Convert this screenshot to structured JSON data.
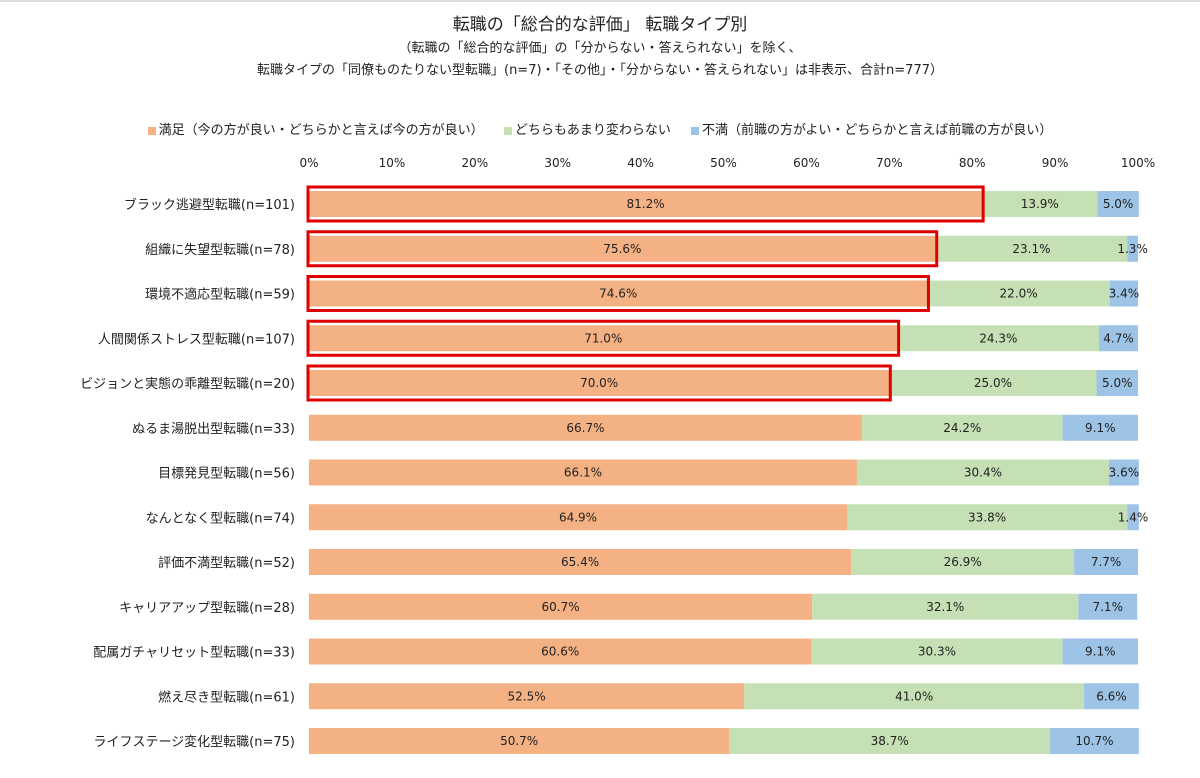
{
  "chart_data": {
    "type": "bar",
    "orientation": "horizontal",
    "stacked": true,
    "title": "転職の「総合的な評価」 転職タイプ別",
    "subtitle_lines": [
      "（転職の「総合的な評価」の「分からない・答えられない」を除く、",
      "転職タイプの「同僚ものたりない型転職」(n=7)・「その他」・「分からない・答えられない」は非表示、合計n=777）"
    ],
    "legend_position": "top",
    "xlim": [
      0,
      100
    ],
    "x_ticks": [
      "0%",
      "10%",
      "20%",
      "30%",
      "40%",
      "50%",
      "60%",
      "70%",
      "80%",
      "90%",
      "100%"
    ],
    "categories": [
      "ブラック逃避型転職(n=101)",
      "組織に失望型転職(n=78)",
      "環境不適応型転職(n=59)",
      "人間関係ストレス型転職(n=107)",
      "ビジョンと実態の乖離型転職(n=20)",
      "ぬるま湯脱出型転職(n=33)",
      "目標発見型転職(n=56)",
      "なんとなく型転職(n=74)",
      "評価不満型転職(n=52)",
      "キャリアアップ型転職(n=28)",
      "配属ガチャリセット型転職(n=33)",
      "燃え尽き型転職(n=61)",
      "ライフステージ変化型転職(n=75)"
    ],
    "series": [
      {
        "name": "満足（今の方が良い・どちらかと言えば今の方が良い）",
        "color": "#F4B183",
        "values": [
          81.2,
          75.6,
          74.6,
          71.0,
          70.0,
          66.7,
          66.1,
          64.9,
          65.4,
          60.7,
          60.6,
          52.5,
          50.7
        ]
      },
      {
        "name": "どちらもあまり変わらない",
        "color": "#C5E0B4",
        "values": [
          13.9,
          23.1,
          22.0,
          24.3,
          25.0,
          24.2,
          30.4,
          33.8,
          26.9,
          32.1,
          30.3,
          41.0,
          38.7
        ]
      },
      {
        "name": "不満（前職の方がよい・どちらかと言えば前職の方が良い）",
        "color": "#9DC3E6",
        "values": [
          5.0,
          1.3,
          3.4,
          4.7,
          5.0,
          9.1,
          3.6,
          1.4,
          7.7,
          7.1,
          9.1,
          6.6,
          10.7
        ]
      }
    ],
    "highlighted_categories": [
      0,
      1,
      2,
      3,
      4
    ],
    "highlight_color": "#E00000"
  }
}
